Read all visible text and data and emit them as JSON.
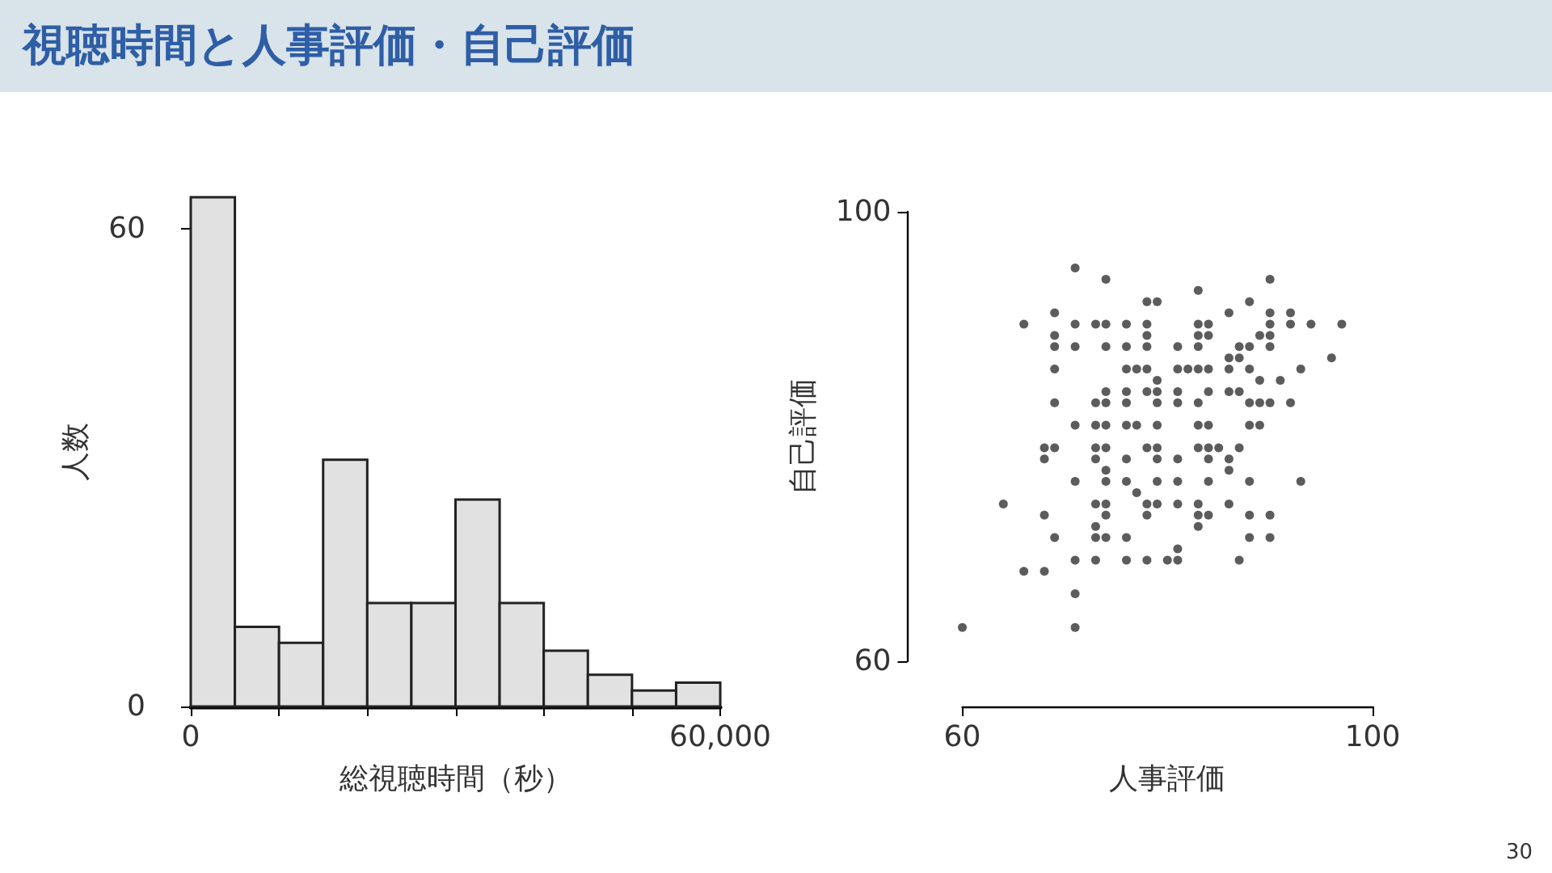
{
  "chart_data": [
    {
      "type": "histogram",
      "title": "視聴時間と人事評価・自己評価",
      "xlabel": "総視聴時間（秒）",
      "ylabel": "人数",
      "color": "#e0e1e0",
      "bins": [
        0,
        5000,
        10000,
        15000,
        20000,
        25000,
        30000,
        35000,
        40000,
        45000,
        50000,
        55000,
        60000
      ],
      "values": [
        64,
        10,
        8,
        31,
        13,
        13,
        26,
        13,
        7,
        4,
        2,
        3
      ],
      "xlim": [
        0,
        60000
      ],
      "ylim": [
        0,
        64
      ],
      "xticks": [
        0,
        {
          "value": 10000,
          "label": null
        },
        {
          "value": 20000,
          "label": null
        },
        {
          "value": 30000,
          "label": null
        },
        {
          "value": 40000,
          "label": null
        },
        {
          "value": 50000,
          "label": null
        },
        {
          "value": 60000,
          "label": "60,000"
        }
      ],
      "yticks": [
        0,
        60
      ]
    },
    {
      "type": "scatter",
      "xlabel": "人事評価",
      "ylabel": "自己評価",
      "color": "#333333",
      "marker": "circle",
      "annotations": [
        "30"
      ],
      "x": [
        71,
        74,
        90,
        83,
        78,
        79,
        88,
        69,
        86,
        90,
        92,
        66,
        71,
        73,
        74,
        76,
        78,
        83,
        84,
        90,
        92,
        94,
        97,
        69,
        78,
        83,
        84,
        89,
        90,
        69,
        71,
        74,
        76,
        78,
        81,
        83,
        87,
        88,
        90,
        86,
        87,
        96,
        69,
        76,
        77,
        78,
        81,
        82,
        83,
        84,
        86,
        88,
        93,
        79,
        89,
        91,
        74,
        76,
        78,
        79,
        81,
        84,
        86,
        87,
        69,
        73,
        74,
        76,
        79,
        81,
        83,
        88,
        89,
        90,
        92,
        71,
        73,
        74,
        76,
        77,
        79,
        83,
        84,
        88,
        89,
        68,
        69,
        73,
        74,
        78,
        79,
        83,
        84,
        85,
        87,
        68,
        73,
        76,
        79,
        81,
        84,
        86,
        74,
        86,
        71,
        74,
        76,
        79,
        81,
        84,
        88,
        93,
        77,
        64,
        73,
        74,
        78,
        79,
        81,
        83,
        86,
        68,
        74,
        78,
        83,
        84,
        88,
        90,
        73,
        83,
        69,
        73,
        74,
        76,
        88,
        90,
        81,
        71,
        73,
        76,
        78,
        80,
        81,
        87,
        66,
        68,
        71,
        60,
        71
      ],
      "values": [
        95,
        94,
        94,
        93,
        92,
        92,
        92,
        91,
        91,
        91,
        91,
        90,
        90,
        90,
        90,
        90,
        90,
        90,
        90,
        90,
        90,
        90,
        90,
        89,
        89,
        89,
        89,
        89,
        89,
        88,
        88,
        88,
        88,
        88,
        88,
        88,
        88,
        88,
        88,
        87,
        87,
        87,
        86,
        86,
        86,
        86,
        86,
        86,
        86,
        86,
        86,
        86,
        86,
        85,
        85,
        85,
        84,
        84,
        84,
        84,
        84,
        84,
        84,
        84,
        83,
        83,
        83,
        83,
        83,
        83,
        83,
        83,
        83,
        83,
        83,
        81,
        81,
        81,
        81,
        81,
        81,
        81,
        81,
        81,
        81,
        79,
        79,
        79,
        79,
        79,
        79,
        79,
        79,
        79,
        79,
        78,
        78,
        78,
        78,
        78,
        78,
        78,
        77,
        77,
        76,
        76,
        76,
        76,
        76,
        76,
        76,
        76,
        75,
        74,
        74,
        74,
        74,
        74,
        74,
        74,
        74,
        73,
        73,
        73,
        73,
        73,
        73,
        73,
        72,
        72,
        71,
        71,
        71,
        71,
        71,
        71,
        70,
        69,
        69,
        69,
        69,
        69,
        69,
        69,
        68,
        68,
        66,
        63,
        63
      ],
      "xlim": [
        60,
        100
      ],
      "ylim": [
        60,
        100
      ],
      "xticks": [
        60,
        100
      ],
      "yticks": [
        60,
        100
      ]
    }
  ]
}
